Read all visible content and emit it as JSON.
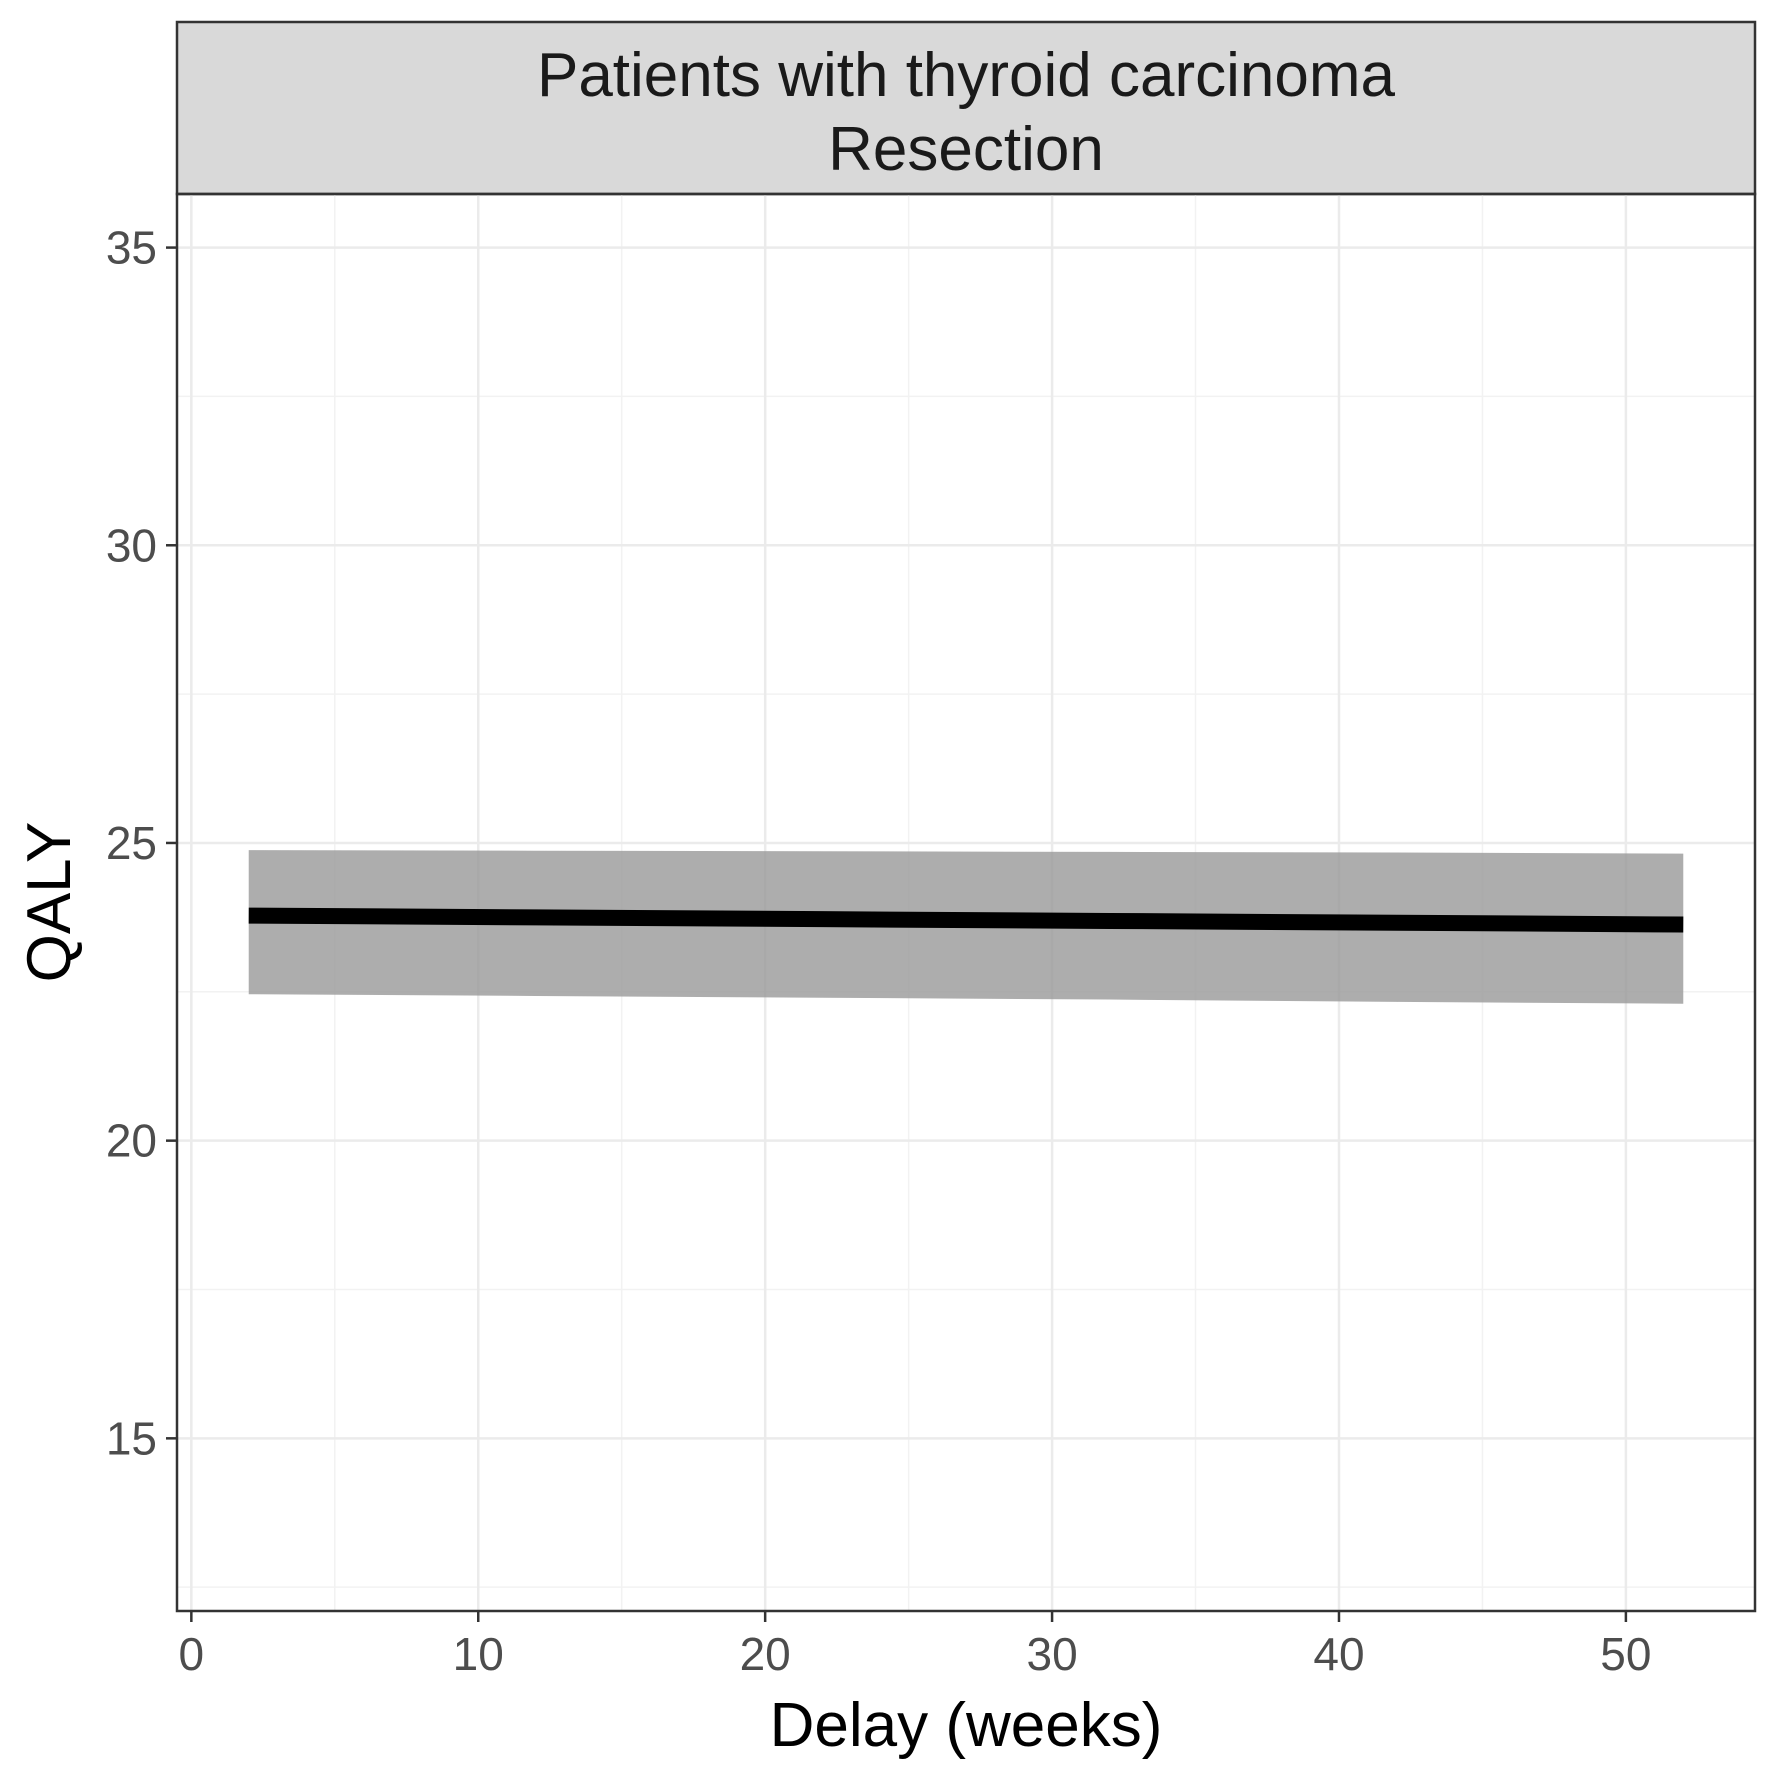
{
  "chart_data": {
    "type": "line",
    "facet_strip": [
      "Patients with thyroid carcinoma",
      "Resection"
    ],
    "xlabel": "Delay (weeks)",
    "ylabel": "QALY",
    "xlim": [
      -0.5,
      54.5
    ],
    "ylim": [
      12.1,
      35.9
    ],
    "x_ticks": [
      0,
      10,
      20,
      30,
      40,
      50
    ],
    "y_ticks": [
      15,
      20,
      25,
      30,
      35
    ],
    "grid": true,
    "series": [
      {
        "x": [
          2,
          12,
          22,
          32,
          42,
          52
        ],
        "y": [
          23.78,
          23.75,
          23.72,
          23.69,
          23.66,
          23.63
        ],
        "lower": [
          22.46,
          22.43,
          22.4,
          22.37,
          22.33,
          22.3
        ],
        "upper": [
          24.88,
          24.87,
          24.86,
          24.85,
          24.84,
          24.82
        ]
      }
    ],
    "colors": {
      "line": "#000000",
      "ribbon": "#999999",
      "strip_fill": "#d9d9d9",
      "grid_major": "#ebebeb",
      "grid_minor": "#f2f2f2",
      "border": "#333333"
    }
  }
}
